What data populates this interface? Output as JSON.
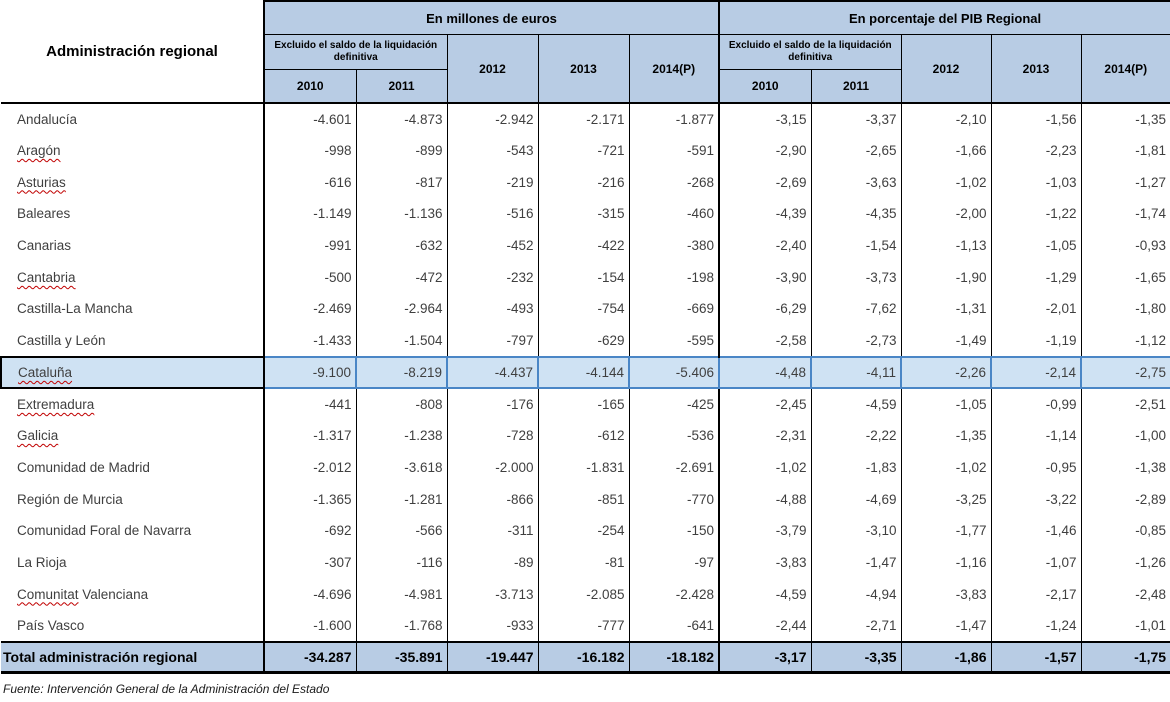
{
  "table": {
    "corner_header": "Administración regional",
    "group_headers": [
      "En millones de euros",
      "En porcentaje del PIB Regional"
    ],
    "excluded_header": "Excluido el saldo de la liquidación definitiva",
    "sub_years": [
      "2010",
      "2011"
    ],
    "year_headers": [
      "2012",
      "2013",
      "2014(P)"
    ],
    "highlighted_row": "Cataluña",
    "rows": [
      {
        "name": "Andalucía",
        "squiggle": null,
        "millions": [
          "-4.601",
          "-4.873",
          "-2.942",
          "-2.171",
          "-1.877"
        ],
        "pct": [
          "-3,15",
          "-3,37",
          "-2,10",
          "-1,56",
          "-1,35"
        ]
      },
      {
        "name": "Aragón",
        "squiggle": "Aragón",
        "millions": [
          "-998",
          "-899",
          "-543",
          "-721",
          "-591"
        ],
        "pct": [
          "-2,90",
          "-2,65",
          "-1,66",
          "-2,23",
          "-1,81"
        ]
      },
      {
        "name": "Asturias",
        "squiggle": "Asturias",
        "millions": [
          "-616",
          "-817",
          "-219",
          "-216",
          "-268"
        ],
        "pct": [
          "-2,69",
          "-3,63",
          "-1,02",
          "-1,03",
          "-1,27"
        ]
      },
      {
        "name": "Baleares",
        "squiggle": null,
        "millions": [
          "-1.149",
          "-1.136",
          "-516",
          "-315",
          "-460"
        ],
        "pct": [
          "-4,39",
          "-4,35",
          "-2,00",
          "-1,22",
          "-1,74"
        ]
      },
      {
        "name": "Canarias",
        "squiggle": null,
        "millions": [
          "-991",
          "-632",
          "-452",
          "-422",
          "-380"
        ],
        "pct": [
          "-2,40",
          "-1,54",
          "-1,13",
          "-1,05",
          "-0,93"
        ]
      },
      {
        "name": "Cantabria",
        "squiggle": "Cantabria",
        "millions": [
          "-500",
          "-472",
          "-232",
          "-154",
          "-198"
        ],
        "pct": [
          "-3,90",
          "-3,73",
          "-1,90",
          "-1,29",
          "-1,65"
        ]
      },
      {
        "name": "Castilla-La Mancha",
        "squiggle": null,
        "millions": [
          "-2.469",
          "-2.964",
          "-493",
          "-754",
          "-669"
        ],
        "pct": [
          "-6,29",
          "-7,62",
          "-1,31",
          "-2,01",
          "-1,80"
        ]
      },
      {
        "name": "Castilla y León",
        "squiggle": null,
        "millions": [
          "-1.433",
          "-1.504",
          "-797",
          "-629",
          "-595"
        ],
        "pct": [
          "-2,58",
          "-2,73",
          "-1,49",
          "-1,19",
          "-1,12"
        ]
      },
      {
        "name": "Cataluña",
        "squiggle": "Cataluña",
        "millions": [
          "-9.100",
          "-8.219",
          "-4.437",
          "-4.144",
          "-5.406"
        ],
        "pct": [
          "-4,48",
          "-4,11",
          "-2,26",
          "-2,14",
          "-2,75"
        ]
      },
      {
        "name": "Extremadura",
        "squiggle": "Extremadura",
        "millions": [
          "-441",
          "-808",
          "-176",
          "-165",
          "-425"
        ],
        "pct": [
          "-2,45",
          "-4,59",
          "-1,05",
          "-0,99",
          "-2,51"
        ]
      },
      {
        "name": "Galicia",
        "squiggle": "Galicia",
        "millions": [
          "-1.317",
          "-1.238",
          "-728",
          "-612",
          "-536"
        ],
        "pct": [
          "-2,31",
          "-2,22",
          "-1,35",
          "-1,14",
          "-1,00"
        ]
      },
      {
        "name": "Comunidad de Madrid",
        "squiggle": null,
        "millions": [
          "-2.012",
          "-3.618",
          "-2.000",
          "-1.831",
          "-2.691"
        ],
        "pct": [
          "-1,02",
          "-1,83",
          "-1,02",
          "-0,95",
          "-1,38"
        ]
      },
      {
        "name": "Región de Murcia",
        "squiggle": null,
        "millions": [
          "-1.365",
          "-1.281",
          "-866",
          "-851",
          "-770"
        ],
        "pct": [
          "-4,88",
          "-4,69",
          "-3,25",
          "-3,22",
          "-2,89"
        ]
      },
      {
        "name": "Comunidad Foral de Navarra",
        "squiggle": null,
        "millions": [
          "-692",
          "-566",
          "-311",
          "-254",
          "-150"
        ],
        "pct": [
          "-3,79",
          "-3,10",
          "-1,77",
          "-1,46",
          "-0,85"
        ]
      },
      {
        "name": "La Rioja",
        "squiggle": null,
        "millions": [
          "-307",
          "-116",
          "-89",
          "-81",
          "-97"
        ],
        "pct": [
          "-3,83",
          "-1,47",
          "-1,16",
          "-1,07",
          "-1,26"
        ]
      },
      {
        "name": "Comunitat Valenciana",
        "squiggle": "Comunitat",
        "millions": [
          "-4.696",
          "-4.981",
          "-3.713",
          "-2.085",
          "-2.428"
        ],
        "pct": [
          "-4,59",
          "-4,94",
          "-3,83",
          "-2,17",
          "-2,48"
        ]
      },
      {
        "name": "País Vasco",
        "squiggle": null,
        "millions": [
          "-1.600",
          "-1.768",
          "-933",
          "-777",
          "-641"
        ],
        "pct": [
          "-2,44",
          "-2,71",
          "-1,47",
          "-1,24",
          "-1,01"
        ]
      }
    ],
    "total": {
      "label": "Total administración regional",
      "millions": [
        "-34.287",
        "-35.891",
        "-19.447",
        "-16.182",
        "-18.182"
      ],
      "pct": [
        "-3,17",
        "-3,35",
        "-1,86",
        "-1,57",
        "-1,75"
      ]
    }
  },
  "footer": {
    "source": "Fuente: Intervención General de la Administración del Estado"
  },
  "colors": {
    "header_bg": "#b8cce4",
    "highlight_bg": "#cfe2f3",
    "highlight_border": "#4a86c6",
    "total_bg": "#b8cce4",
    "squiggle": "#c00000",
    "data_text": "#3f3f3f"
  }
}
